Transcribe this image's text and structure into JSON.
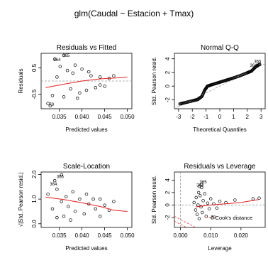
{
  "figure": {
    "title": "glm(Caudal ~ Estacion + Tmax)"
  },
  "chart_data": [
    {
      "id": "rvf",
      "type": "scatter",
      "title": "Residuals vs Fitted",
      "xlabel": "Predicted values",
      "ylabel": "Residuals",
      "xlim": [
        0.031,
        0.051
      ],
      "ylim": [
        -1.05,
        1.05
      ],
      "xticks": [
        {
          "v": 0.035,
          "label": "0.035"
        },
        {
          "v": 0.04,
          "label": "0.040"
        },
        {
          "v": 0.045,
          "label": "0.045"
        },
        {
          "v": 0.05,
          "label": "0.050"
        }
      ],
      "yticks": [
        {
          "v": -0.5,
          "label": "-0.5"
        },
        {
          "v": 0.5,
          "label": "0.5"
        }
      ],
      "smooth": [
        [
          0.032,
          -0.25
        ],
        [
          0.036,
          -0.12
        ],
        [
          0.04,
          0.0
        ],
        [
          0.044,
          0.08
        ],
        [
          0.048,
          0.12
        ],
        [
          0.05,
          0.15
        ]
      ],
      "ref_line": 0,
      "labels": [
        {
          "text": "365",
          "x": 0.0365,
          "y": 0.92
        },
        {
          "text": "364",
          "x": 0.0345,
          "y": 0.76
        },
        {
          "text": "79",
          "x": 0.0333,
          "y": -0.94
        }
      ],
      "points": [
        [
          0.0325,
          -0.85
        ],
        [
          0.0335,
          -0.55
        ],
        [
          0.0345,
          0.15
        ],
        [
          0.0352,
          0.55
        ],
        [
          0.036,
          -0.6
        ],
        [
          0.0368,
          0.4
        ],
        [
          0.0375,
          -0.3
        ],
        [
          0.038,
          0.3
        ],
        [
          0.039,
          -0.65
        ],
        [
          0.04,
          0.45
        ],
        [
          0.041,
          -0.35
        ],
        [
          0.042,
          0.2
        ],
        [
          0.043,
          -0.25
        ],
        [
          0.044,
          0.15
        ],
        [
          0.045,
          -0.2
        ],
        [
          0.046,
          0.1
        ],
        [
          0.047,
          0.2
        ],
        [
          0.036,
          0.97
        ],
        [
          0.034,
          0.83
        ],
        [
          0.033,
          -0.94
        ],
        [
          0.0385,
          0.6
        ],
        [
          0.0395,
          -0.45
        ],
        [
          0.0415,
          0.35
        ],
        [
          0.044,
          -0.15
        ]
      ]
    },
    {
      "id": "qq",
      "type": "scatter",
      "title": "Normal Q-Q",
      "xlabel": "Theoretical Quantiles",
      "ylabel": "Std. Pearson resid.",
      "xlim": [
        -3.3,
        3.3
      ],
      "ylim": [
        -3.3,
        4.8
      ],
      "xticks": [
        {
          "v": -3,
          "label": "-3"
        },
        {
          "v": -2,
          "label": "-2"
        },
        {
          "v": -1,
          "label": "-1"
        },
        {
          "v": 0,
          "label": "0"
        },
        {
          "v": 1,
          "label": "1"
        },
        {
          "v": 2,
          "label": "2"
        },
        {
          "v": 3,
          "label": "3"
        }
      ],
      "yticks": [
        {
          "v": -2,
          "label": "-2"
        },
        {
          "v": 0,
          "label": "0"
        },
        {
          "v": 2,
          "label": "2"
        },
        {
          "v": 4,
          "label": "4"
        }
      ],
      "ref_line": [
        [
          -3.3,
          -3.3
        ],
        [
          3.3,
          3.3
        ]
      ],
      "labels": [
        {
          "text": "365",
          "x": 2.75,
          "y": 3.4
        },
        {
          "text": "364",
          "x": 2.45,
          "y": 2.85
        }
      ],
      "curve": [
        [
          -2.9,
          -2.6
        ],
        [
          -2.5,
          -2.4
        ],
        [
          -2.0,
          -2.15
        ],
        [
          -1.6,
          -1.95
        ],
        [
          -1.3,
          -1.5
        ],
        [
          -1.1,
          -0.6
        ],
        [
          -0.9,
          0.0
        ],
        [
          -0.6,
          0.2
        ],
        [
          -0.2,
          0.45
        ],
        [
          0.2,
          0.7
        ],
        [
          0.6,
          0.95
        ],
        [
          1.0,
          1.2
        ],
        [
          1.5,
          1.55
        ],
        [
          2.0,
          1.95
        ],
        [
          2.3,
          2.2
        ],
        [
          2.6,
          2.8
        ],
        [
          2.9,
          3.2
        ]
      ]
    },
    {
      "id": "sl",
      "type": "scatter",
      "title": "Scale-Location",
      "xlabel": "Predicted values",
      "ylabel": "√|Std. Pearson resid.|",
      "xlim": [
        0.031,
        0.051
      ],
      "ylim": [
        -0.15,
        2.1
      ],
      "xticks": [
        {
          "v": 0.035,
          "label": "0.035"
        },
        {
          "v": 0.04,
          "label": "0.040"
        },
        {
          "v": 0.045,
          "label": "0.045"
        },
        {
          "v": 0.05,
          "label": "0.050"
        }
      ],
      "yticks": [
        {
          "v": 0.0,
          "label": "0.0"
        },
        {
          "v": 1.0,
          "label": "1.0"
        },
        {
          "v": 2.0,
          "label": "2.0"
        }
      ],
      "smooth": [
        [
          0.032,
          1.08
        ],
        [
          0.036,
          0.98
        ],
        [
          0.04,
          0.85
        ],
        [
          0.044,
          0.7
        ],
        [
          0.047,
          0.55
        ],
        [
          0.05,
          0.5
        ]
      ],
      "labels": [
        {
          "text": "365",
          "x": 0.0352,
          "y": 1.85
        },
        {
          "text": "364",
          "x": 0.0337,
          "y": 1.55
        }
      ],
      "points": [
        [
          0.0325,
          1.2
        ],
        [
          0.0335,
          0.6
        ],
        [
          0.0345,
          1.4
        ],
        [
          0.0355,
          0.9
        ],
        [
          0.036,
          0.3
        ],
        [
          0.0365,
          1.1
        ],
        [
          0.037,
          0.7
        ],
        [
          0.038,
          1.3
        ],
        [
          0.0385,
          0.5
        ],
        [
          0.0395,
          1.0
        ],
        [
          0.0405,
          0.4
        ],
        [
          0.0415,
          0.8
        ],
        [
          0.0425,
          1.0
        ],
        [
          0.043,
          0.6
        ],
        [
          0.044,
          0.3
        ],
        [
          0.045,
          0.75
        ],
        [
          0.046,
          0.55
        ],
        [
          0.047,
          0.9
        ],
        [
          0.034,
          1.75
        ],
        [
          0.0355,
          1.98
        ],
        [
          0.0345,
          0.25
        ],
        [
          0.0375,
          0.15
        ],
        [
          0.041,
          1.2
        ],
        [
          0.044,
          1.0
        ]
      ]
    },
    {
      "id": "rvl",
      "type": "scatter",
      "title": "Residuals vs Leverage",
      "xlabel": "Leverage",
      "ylabel": "Std. Pearson resid.",
      "xlim": [
        -0.002,
        0.028
      ],
      "ylim": [
        -3.6,
        5.3
      ],
      "xticks": [
        {
          "v": 0.0,
          "label": "0.000"
        },
        {
          "v": 0.01,
          "label": "0.010"
        },
        {
          "v": 0.02,
          "label": "0.020"
        }
      ],
      "yticks": [
        {
          "v": -2,
          "label": "-2"
        },
        {
          "v": 0,
          "label": "0"
        },
        {
          "v": 2,
          "label": "2"
        },
        {
          "v": 4,
          "label": "4"
        }
      ],
      "smooth": [
        [
          0.005,
          -0.3
        ],
        [
          0.01,
          0.0
        ],
        [
          0.015,
          0.2
        ],
        [
          0.02,
          0.4
        ],
        [
          0.026,
          0.9
        ]
      ],
      "ref_h": 0,
      "ref_v": 0,
      "cooks": [
        [
          [
            -0.002,
            -1.8
          ],
          [
            0.005,
            -3.6
          ]
        ],
        [
          [
            -0.002,
            -2.6
          ],
          [
            0.002,
            -3.6
          ]
        ]
      ],
      "labels": [
        {
          "text": "365",
          "x": 0.0075,
          "y": 3.45
        },
        {
          "text": "364",
          "x": 0.0065,
          "y": 2.95
        },
        {
          "text": "78",
          "x": 0.0108,
          "y": -2.15
        }
      ],
      "legend_label": "Cook's distance",
      "points": [
        [
          0.0045,
          0.4
        ],
        [
          0.005,
          -0.8
        ],
        [
          0.0052,
          1.2
        ],
        [
          0.0055,
          -1.5
        ],
        [
          0.0058,
          0.0
        ],
        [
          0.006,
          2.0
        ],
        [
          0.0062,
          -2.2
        ],
        [
          0.0065,
          1.5
        ],
        [
          0.0068,
          -0.3
        ],
        [
          0.007,
          2.8
        ],
        [
          0.0072,
          -1.2
        ],
        [
          0.0075,
          0.7
        ],
        [
          0.008,
          1.8
        ],
        [
          0.0085,
          -1.8
        ],
        [
          0.009,
          0.3
        ],
        [
          0.0095,
          -0.6
        ],
        [
          0.01,
          1.0
        ],
        [
          0.011,
          0.2
        ],
        [
          0.012,
          -0.5
        ],
        [
          0.013,
          0.6
        ],
        [
          0.015,
          0.4
        ],
        [
          0.018,
          0.8
        ],
        [
          0.024,
          1.0
        ],
        [
          0.026,
          1.1
        ],
        [
          0.007,
          3.3
        ],
        [
          0.0063,
          3.0
        ],
        [
          0.0105,
          -2.05
        ]
      ]
    }
  ]
}
